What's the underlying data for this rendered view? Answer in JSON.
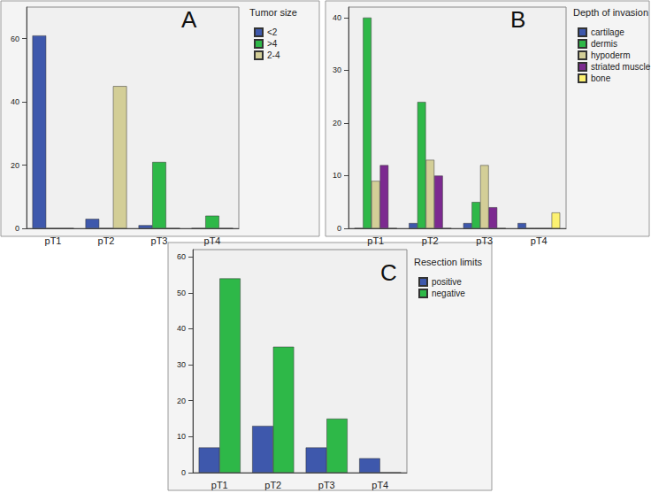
{
  "chart_data": [
    {
      "type": "bar",
      "title": "A",
      "legend_title": "Tumor size",
      "legend": "right",
      "grid": false,
      "categories": [
        "pT1",
        "pT2",
        "pT3",
        "pT4"
      ],
      "series": [
        {
          "name": "<2",
          "color": "#3e58ac",
          "values": [
            61,
            3,
            1,
            0
          ]
        },
        {
          "name": ">4",
          "color": "#2eb848",
          "values": [
            0,
            0,
            21,
            4
          ]
        },
        {
          "name": "2-4",
          "color": "#d3ce97",
          "values": [
            0,
            45,
            0,
            0
          ]
        }
      ],
      "ylim": [
        0,
        70
      ],
      "yticks": [
        0,
        20,
        40,
        60
      ]
    },
    {
      "type": "bar",
      "title": "B",
      "legend_title": "Depth of invasion",
      "legend": "right",
      "grid": false,
      "categories": [
        "pT1",
        "pT2",
        "pT3",
        "pT4"
      ],
      "series": [
        {
          "name": "cartilage",
          "color": "#3e58ac",
          "values": [
            0,
            1,
            1,
            1
          ]
        },
        {
          "name": "dermis",
          "color": "#2eb848",
          "values": [
            40,
            24,
            5,
            0
          ]
        },
        {
          "name": "hypoderm",
          "color": "#d3ce97",
          "values": [
            9,
            13,
            12,
            0
          ]
        },
        {
          "name": "striated muscle",
          "color": "#7c2a90",
          "values": [
            12,
            10,
            4,
            0
          ]
        },
        {
          "name": "bone",
          "color": "#fcf171",
          "values": [
            0,
            0,
            0,
            3
          ]
        }
      ],
      "ylim": [
        0,
        42
      ],
      "yticks": [
        0,
        10,
        20,
        30,
        40
      ]
    },
    {
      "type": "bar",
      "title": "C",
      "legend_title": "Resection limits",
      "legend": "right",
      "grid": false,
      "categories": [
        "pT1",
        "pT2",
        "pT3",
        "pT4"
      ],
      "series": [
        {
          "name": "positive",
          "color": "#3e58ac",
          "values": [
            7,
            13,
            7,
            4
          ]
        },
        {
          "name": "negative",
          "color": "#2eb848",
          "values": [
            54,
            35,
            15,
            0
          ]
        }
      ],
      "ylim": [
        0,
        62
      ],
      "yticks": [
        0,
        10,
        20,
        30,
        40,
        50,
        60
      ]
    }
  ]
}
